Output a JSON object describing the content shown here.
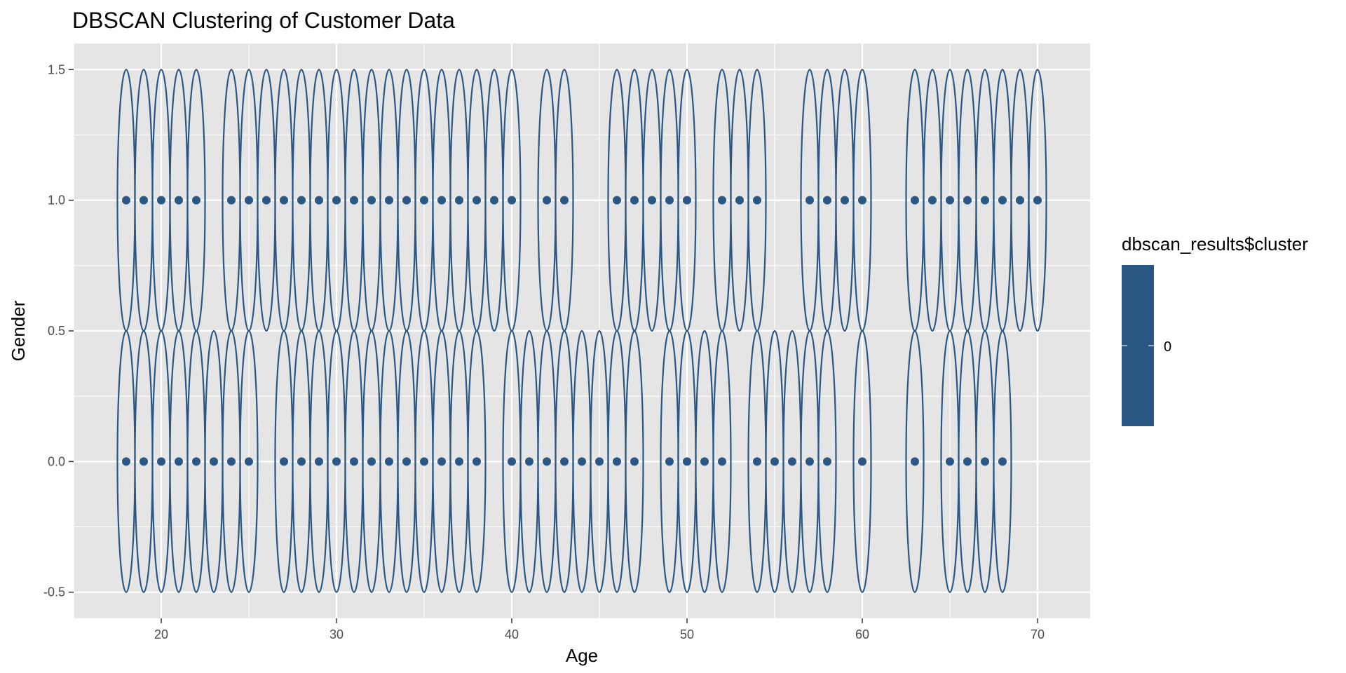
{
  "chart_data": {
    "type": "scatter",
    "title": "DBSCAN Clustering of Customer Data",
    "xlabel": "Age",
    "ylabel": "Gender",
    "xlim": [
      15,
      73
    ],
    "ylim": [
      -0.6,
      1.6
    ],
    "x_ticks": [
      20,
      30,
      40,
      50,
      60,
      70
    ],
    "x_tick_labels": [
      "20",
      "30",
      "40",
      "50",
      "60",
      "70"
    ],
    "y_ticks": [
      -0.5,
      0.0,
      0.5,
      1.0,
      1.5
    ],
    "y_tick_labels": [
      "-0.5",
      "0.0",
      "0.5",
      "1.0",
      "1.5"
    ],
    "grid": true,
    "ellipse_half_width": 0.5,
    "ellipse_half_height": 0.5,
    "series": [
      {
        "cluster": 0,
        "points": [
          {
            "x": 18,
            "y": 1
          },
          {
            "x": 19,
            "y": 1
          },
          {
            "x": 20,
            "y": 1
          },
          {
            "x": 21,
            "y": 1
          },
          {
            "x": 22,
            "y": 1
          },
          {
            "x": 24,
            "y": 1
          },
          {
            "x": 25,
            "y": 1
          },
          {
            "x": 26,
            "y": 1
          },
          {
            "x": 27,
            "y": 1
          },
          {
            "x": 28,
            "y": 1
          },
          {
            "x": 29,
            "y": 1
          },
          {
            "x": 30,
            "y": 1
          },
          {
            "x": 31,
            "y": 1
          },
          {
            "x": 32,
            "y": 1
          },
          {
            "x": 33,
            "y": 1
          },
          {
            "x": 34,
            "y": 1
          },
          {
            "x": 35,
            "y": 1
          },
          {
            "x": 36,
            "y": 1
          },
          {
            "x": 37,
            "y": 1
          },
          {
            "x": 38,
            "y": 1
          },
          {
            "x": 39,
            "y": 1
          },
          {
            "x": 40,
            "y": 1
          },
          {
            "x": 42,
            "y": 1
          },
          {
            "x": 43,
            "y": 1
          },
          {
            "x": 46,
            "y": 1
          },
          {
            "x": 47,
            "y": 1
          },
          {
            "x": 48,
            "y": 1
          },
          {
            "x": 49,
            "y": 1
          },
          {
            "x": 50,
            "y": 1
          },
          {
            "x": 52,
            "y": 1
          },
          {
            "x": 53,
            "y": 1
          },
          {
            "x": 54,
            "y": 1
          },
          {
            "x": 57,
            "y": 1
          },
          {
            "x": 58,
            "y": 1
          },
          {
            "x": 59,
            "y": 1
          },
          {
            "x": 60,
            "y": 1
          },
          {
            "x": 63,
            "y": 1
          },
          {
            "x": 64,
            "y": 1
          },
          {
            "x": 65,
            "y": 1
          },
          {
            "x": 66,
            "y": 1
          },
          {
            "x": 67,
            "y": 1
          },
          {
            "x": 68,
            "y": 1
          },
          {
            "x": 69,
            "y": 1
          },
          {
            "x": 70,
            "y": 1
          },
          {
            "x": 18,
            "y": 0
          },
          {
            "x": 19,
            "y": 0
          },
          {
            "x": 20,
            "y": 0
          },
          {
            "x": 21,
            "y": 0
          },
          {
            "x": 22,
            "y": 0
          },
          {
            "x": 23,
            "y": 0
          },
          {
            "x": 24,
            "y": 0
          },
          {
            "x": 25,
            "y": 0
          },
          {
            "x": 27,
            "y": 0
          },
          {
            "x": 28,
            "y": 0
          },
          {
            "x": 29,
            "y": 0
          },
          {
            "x": 30,
            "y": 0
          },
          {
            "x": 31,
            "y": 0
          },
          {
            "x": 32,
            "y": 0
          },
          {
            "x": 33,
            "y": 0
          },
          {
            "x": 34,
            "y": 0
          },
          {
            "x": 35,
            "y": 0
          },
          {
            "x": 36,
            "y": 0
          },
          {
            "x": 37,
            "y": 0
          },
          {
            "x": 38,
            "y": 0
          },
          {
            "x": 40,
            "y": 0
          },
          {
            "x": 41,
            "y": 0
          },
          {
            "x": 42,
            "y": 0
          },
          {
            "x": 43,
            "y": 0
          },
          {
            "x": 44,
            "y": 0
          },
          {
            "x": 45,
            "y": 0
          },
          {
            "x": 46,
            "y": 0
          },
          {
            "x": 47,
            "y": 0
          },
          {
            "x": 49,
            "y": 0
          },
          {
            "x": 50,
            "y": 0
          },
          {
            "x": 51,
            "y": 0
          },
          {
            "x": 52,
            "y": 0
          },
          {
            "x": 54,
            "y": 0
          },
          {
            "x": 55,
            "y": 0
          },
          {
            "x": 56,
            "y": 0
          },
          {
            "x": 57,
            "y": 0
          },
          {
            "x": 58,
            "y": 0
          },
          {
            "x": 60,
            "y": 0
          },
          {
            "x": 63,
            "y": 0
          },
          {
            "x": 65,
            "y": 0
          },
          {
            "x": 66,
            "y": 0
          },
          {
            "x": 67,
            "y": 0
          },
          {
            "x": 68,
            "y": 0
          }
        ]
      }
    ],
    "legend": {
      "title": "dbscan_results$cluster",
      "labels": [
        "0"
      ],
      "position": "right"
    },
    "colors": {
      "points": "#2a5783",
      "ellipses": "#2a5783",
      "panel_background": "#e5e5e5",
      "grid": "#ffffff",
      "legend_bar": "#2a5783"
    }
  }
}
